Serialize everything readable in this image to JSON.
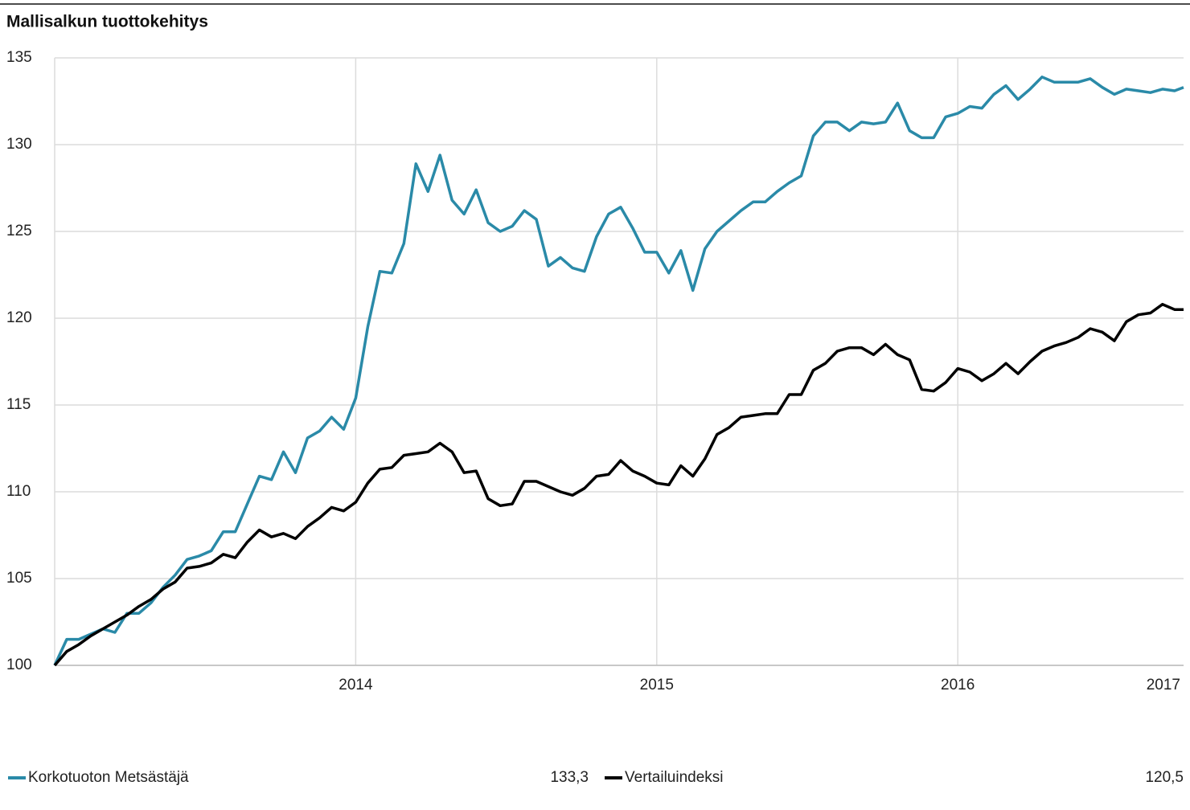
{
  "chart_data": {
    "type": "line",
    "title": "Mallisalkun tuottokehitys",
    "x": [
      2013,
      2013.04,
      2013.08,
      2013.12,
      2013.16,
      2013.2,
      2013.24,
      2013.28,
      2013.32,
      2013.36,
      2013.4,
      2013.44,
      2013.48,
      2013.52,
      2013.56,
      2013.6,
      2013.64,
      2013.68,
      2013.72,
      2013.76,
      2013.8,
      2013.84,
      2013.88,
      2013.92,
      2013.96,
      2014,
      2014.04,
      2014.08,
      2014.12,
      2014.16,
      2014.2,
      2014.24,
      2014.28,
      2014.32,
      2014.36,
      2014.4,
      2014.44,
      2014.48,
      2014.52,
      2014.56,
      2014.6,
      2014.64,
      2014.68,
      2014.72,
      2014.76,
      2014.8,
      2014.84,
      2014.88,
      2014.92,
      2014.96,
      2015,
      2015.04,
      2015.08,
      2015.12,
      2015.16,
      2015.2,
      2015.24,
      2015.28,
      2015.32,
      2015.36,
      2015.4,
      2015.44,
      2015.48,
      2015.52,
      2015.56,
      2015.6,
      2015.64,
      2015.68,
      2015.72,
      2015.76,
      2015.8,
      2015.84,
      2015.88,
      2015.92,
      2015.96,
      2016,
      2016.04,
      2016.08,
      2016.12,
      2016.16,
      2016.2,
      2016.24,
      2016.28,
      2016.32,
      2016.36,
      2016.4,
      2016.44,
      2016.48,
      2016.52,
      2016.56,
      2016.6,
      2016.64,
      2016.68,
      2016.72,
      2016.75
    ],
    "series": [
      {
        "name": "Korkotuoton Metsästäjä",
        "color": "#2a8aa8",
        "last_label": "133,3",
        "values": [
          100,
          101.5,
          101.5,
          101.8,
          102.1,
          101.9,
          103.0,
          103.0,
          103.6,
          104.5,
          105.2,
          106.1,
          106.3,
          106.6,
          107.7,
          107.7,
          109.3,
          110.9,
          110.7,
          112.3,
          111.1,
          113.1,
          113.5,
          114.3,
          113.6,
          115.4,
          119.5,
          122.7,
          122.6,
          124.3,
          128.9,
          127.3,
          129.4,
          126.8,
          126.0,
          127.4,
          125.5,
          125.0,
          125.3,
          126.2,
          125.7,
          123.0,
          123.5,
          122.9,
          122.7,
          124.7,
          126.0,
          126.4,
          125.2,
          123.8,
          123.8,
          122.6,
          123.9,
          121.6,
          124.0,
          125.0,
          125.6,
          126.2,
          126.7,
          126.7,
          127.3,
          127.8,
          128.2,
          130.5,
          131.3,
          131.3,
          130.8,
          131.3,
          131.2,
          131.3,
          132.4,
          130.8,
          130.4,
          130.4,
          131.6,
          131.8,
          132.2,
          132.1,
          132.9,
          133.4,
          132.6,
          133.2,
          133.9,
          133.6,
          133.6,
          133.6,
          133.8,
          133.3,
          132.9,
          133.2,
          133.1,
          133.0,
          133.2,
          133.1,
          133.3
        ]
      },
      {
        "name": "Vertailuindeksi",
        "color": "#000000",
        "last_label": "120,5",
        "values": [
          100,
          100.8,
          101.2,
          101.7,
          102.1,
          102.5,
          102.9,
          103.4,
          103.8,
          104.4,
          104.8,
          105.6,
          105.7,
          105.9,
          106.4,
          106.2,
          107.1,
          107.8,
          107.4,
          107.6,
          107.3,
          108.0,
          108.5,
          109.1,
          108.9,
          109.4,
          110.5,
          111.3,
          111.4,
          112.1,
          112.2,
          112.3,
          112.8,
          112.3,
          111.1,
          111.2,
          109.6,
          109.2,
          109.3,
          110.6,
          110.6,
          110.3,
          110.0,
          109.8,
          110.2,
          110.9,
          111.0,
          111.8,
          111.2,
          110.9,
          110.5,
          110.4,
          111.5,
          110.9,
          111.9,
          113.3,
          113.7,
          114.3,
          114.4,
          114.5,
          114.5,
          115.6,
          115.6,
          117.0,
          117.4,
          118.1,
          118.3,
          118.3,
          117.9,
          118.5,
          117.9,
          117.6,
          115.9,
          115.8,
          116.3,
          117.1,
          116.9,
          116.4,
          116.8,
          117.4,
          116.8,
          117.5,
          118.1,
          118.4,
          118.6,
          118.9,
          119.4,
          119.2,
          118.7,
          119.8,
          120.2,
          120.3,
          120.8,
          120.5,
          120.5
        ]
      }
    ],
    "xlim": [
      2013,
      2016.75
    ],
    "xticks": [
      2014,
      2015,
      2016,
      2017
    ],
    "ylim": [
      100,
      135
    ],
    "yticks": [
      100,
      105,
      110,
      115,
      120,
      125,
      130,
      135
    ],
    "grid": true
  }
}
